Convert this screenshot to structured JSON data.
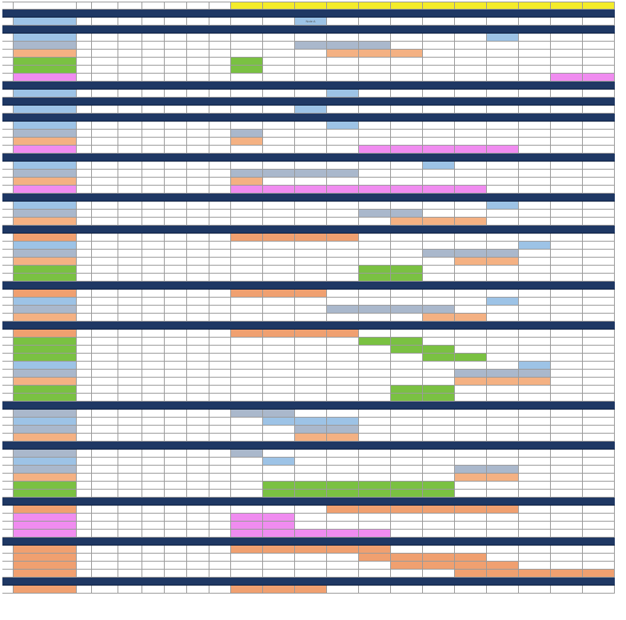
{
  "sheet": {
    "header": {
      "labels": [
        "",
        "",
        "",
        "",
        "",
        "",
        "",
        "",
        "",
        "",
        "",
        "",
        "",
        "",
        "",
        "",
        "",
        "",
        "",
        "",
        ""
      ],
      "yellow_cols": [
        9,
        10,
        11,
        12,
        13,
        14,
        15,
        16,
        17,
        18,
        19,
        20
      ]
    },
    "colors": {
      "blue": "#9dc3e6",
      "steel": "#aab8cc",
      "peach": "#f4b183",
      "green": "#7ac142",
      "pink": "#f08cf0",
      "orange": "#f0a070",
      "separator": "#1f3864",
      "header_yellow": "#f4ec2a"
    },
    "rows": [
      {
        "type": "sep",
        "label": ""
      },
      {
        "type": "row",
        "nameColor": "blue",
        "bars": [
          {
            "s": 11,
            "e": 11,
            "c": "blue",
            "label": "Note A"
          }
        ]
      },
      {
        "type": "sep",
        "label": ""
      },
      {
        "type": "row",
        "nameColor": "blue",
        "bars": [
          {
            "s": 17,
            "e": 17,
            "c": "blue",
            "label": ""
          }
        ]
      },
      {
        "type": "row",
        "nameColor": "steel",
        "bars": [
          {
            "s": 11,
            "e": 12,
            "c": "steel"
          },
          {
            "s": 13,
            "e": 13,
            "c": "steel",
            "label": ""
          }
        ]
      },
      {
        "type": "row",
        "nameColor": "peach",
        "bars": [
          {
            "s": 12,
            "e": 14,
            "c": "peach"
          },
          {
            "s": 14,
            "e": 14,
            "c": "peach",
            "label": ""
          }
        ]
      },
      {
        "type": "row",
        "nameColor": "green",
        "bars": [
          {
            "s": 9,
            "e": 9,
            "c": "green",
            "label": ""
          }
        ]
      },
      {
        "type": "row",
        "nameColor": "green",
        "bars": [
          {
            "s": 9,
            "e": 9,
            "c": "green",
            "label": ""
          }
        ]
      },
      {
        "type": "row",
        "nameColor": "pink",
        "bars": [
          {
            "s": 19,
            "e": 20,
            "c": "pink"
          }
        ]
      },
      {
        "type": "sep",
        "label": ""
      },
      {
        "type": "row",
        "nameColor": "blue",
        "bars": [
          {
            "s": 12,
            "e": 12,
            "c": "blue",
            "label": ""
          }
        ]
      },
      {
        "type": "sep",
        "label": ""
      },
      {
        "type": "row",
        "nameColor": "blue",
        "bars": [
          {
            "s": 11,
            "e": 11,
            "c": "blue",
            "label": ""
          }
        ]
      },
      {
        "type": "sep",
        "label": ""
      },
      {
        "type": "row",
        "nameColor": "blue",
        "bars": [
          {
            "s": 12,
            "e": 12,
            "c": "blue",
            "label": ""
          }
        ]
      },
      {
        "type": "row",
        "nameColor": "steel",
        "bars": [
          {
            "s": 9,
            "e": 9,
            "c": "steel",
            "label": ""
          }
        ]
      },
      {
        "type": "row",
        "nameColor": "peach",
        "bars": [
          {
            "s": 9,
            "e": 9,
            "c": "peach",
            "label": ""
          }
        ]
      },
      {
        "type": "row",
        "nameColor": "pink",
        "bars": [
          {
            "s": 13,
            "e": 17,
            "c": "pink",
            "label": ""
          }
        ]
      },
      {
        "type": "sep",
        "label": ""
      },
      {
        "type": "row",
        "nameColor": "blue",
        "bars": [
          {
            "s": 15,
            "e": 15,
            "c": "blue",
            "label": ""
          }
        ]
      },
      {
        "type": "row",
        "nameColor": "steel",
        "bars": [
          {
            "s": 9,
            "e": 12,
            "c": "steel",
            "label": ""
          }
        ]
      },
      {
        "type": "row",
        "nameColor": "peach",
        "bars": [
          {
            "s": 9,
            "e": 9,
            "c": "peach",
            "label": ""
          }
        ]
      },
      {
        "type": "row",
        "nameColor": "pink",
        "bars": [
          {
            "s": 9,
            "e": 16,
            "c": "pink",
            "label": ""
          }
        ]
      },
      {
        "type": "sep",
        "label": ""
      },
      {
        "type": "row",
        "nameColor": "blue",
        "bars": [
          {
            "s": 17,
            "e": 17,
            "c": "blue",
            "label": ""
          }
        ]
      },
      {
        "type": "row",
        "nameColor": "steel",
        "bars": [
          {
            "s": 13,
            "e": 14,
            "c": "steel",
            "label": ""
          }
        ]
      },
      {
        "type": "row",
        "nameColor": "peach",
        "bars": [
          {
            "s": 14,
            "e": 16,
            "c": "peach",
            "label": ""
          }
        ]
      },
      {
        "type": "sep",
        "label": ""
      },
      {
        "type": "row",
        "nameColor": "orange",
        "bars": [
          {
            "s": 9,
            "e": 12,
            "c": "orange",
            "label": ""
          }
        ]
      },
      {
        "type": "row",
        "nameColor": "blue",
        "bars": [
          {
            "s": 18,
            "e": 18,
            "c": "blue",
            "label": ""
          }
        ]
      },
      {
        "type": "row",
        "nameColor": "steel",
        "bars": [
          {
            "s": 15,
            "e": 17,
            "c": "steel",
            "label": ""
          }
        ]
      },
      {
        "type": "row",
        "nameColor": "peach",
        "bars": [
          {
            "s": 16,
            "e": 17,
            "c": "peach",
            "label": ""
          }
        ]
      },
      {
        "type": "row",
        "nameColor": "green",
        "bars": [
          {
            "s": 13,
            "e": 14,
            "c": "green",
            "label": ""
          }
        ]
      },
      {
        "type": "row",
        "nameColor": "green",
        "bars": [
          {
            "s": 13,
            "e": 14,
            "c": "green",
            "label": ""
          }
        ]
      },
      {
        "type": "sep",
        "label": ""
      },
      {
        "type": "row",
        "nameColor": "orange",
        "bars": [
          {
            "s": 9,
            "e": 11,
            "c": "orange",
            "label": ""
          }
        ]
      },
      {
        "type": "row",
        "nameColor": "blue",
        "bars": [
          {
            "s": 17,
            "e": 17,
            "c": "blue",
            "label": ""
          }
        ]
      },
      {
        "type": "row",
        "nameColor": "steel",
        "bars": [
          {
            "s": 12,
            "e": 15,
            "c": "steel",
            "label": ""
          }
        ]
      },
      {
        "type": "row",
        "nameColor": "peach",
        "bars": [
          {
            "s": 15,
            "e": 16,
            "c": "peach",
            "label": ""
          }
        ]
      },
      {
        "type": "sep",
        "label": ""
      },
      {
        "type": "row",
        "nameColor": "orange",
        "bars": [
          {
            "s": 9,
            "e": 12,
            "c": "orange",
            "label": ""
          }
        ]
      },
      {
        "type": "row",
        "nameColor": "green",
        "bars": [
          {
            "s": 13,
            "e": 14,
            "c": "green",
            "label": ""
          }
        ]
      },
      {
        "type": "row",
        "nameColor": "green",
        "bars": [
          {
            "s": 14,
            "e": 15,
            "c": "green",
            "label": ""
          }
        ]
      },
      {
        "type": "row",
        "nameColor": "green",
        "bars": [
          {
            "s": 15,
            "e": 16,
            "c": "green",
            "label": ""
          }
        ]
      },
      {
        "type": "row",
        "nameColor": "blue",
        "bars": [
          {
            "s": 18,
            "e": 18,
            "c": "blue",
            "label": ""
          }
        ]
      },
      {
        "type": "row",
        "nameColor": "steel",
        "bars": [
          {
            "s": 16,
            "e": 18,
            "c": "steel",
            "label": ""
          }
        ]
      },
      {
        "type": "row",
        "nameColor": "peach",
        "bars": [
          {
            "s": 16,
            "e": 18,
            "c": "peach",
            "label": ""
          }
        ]
      },
      {
        "type": "row",
        "nameColor": "green",
        "bars": [
          {
            "s": 14,
            "e": 15,
            "c": "green",
            "label": ""
          }
        ]
      },
      {
        "type": "row",
        "nameColor": "green",
        "bars": [
          {
            "s": 14,
            "e": 15,
            "c": "green",
            "label": ""
          }
        ]
      },
      {
        "type": "sep",
        "label": ""
      },
      {
        "type": "row",
        "nameColor": "steel",
        "bars": [
          {
            "s": 9,
            "e": 10,
            "c": "steel",
            "label": ""
          }
        ]
      },
      {
        "type": "row",
        "nameColor": "blue",
        "bars": [
          {
            "s": 10,
            "e": 12,
            "c": "blue",
            "label": ""
          }
        ]
      },
      {
        "type": "row",
        "nameColor": "steel",
        "bars": [
          {
            "s": 11,
            "e": 12,
            "c": "steel",
            "label": ""
          }
        ]
      },
      {
        "type": "row",
        "nameColor": "peach",
        "bars": [
          {
            "s": 11,
            "e": 12,
            "c": "peach",
            "label": ""
          }
        ]
      },
      {
        "type": "sep",
        "label": ""
      },
      {
        "type": "row",
        "nameColor": "steel",
        "bars": [
          {
            "s": 9,
            "e": 9,
            "c": "steel",
            "label": ""
          }
        ]
      },
      {
        "type": "row",
        "nameColor": "blue",
        "bars": [
          {
            "s": 10,
            "e": 10,
            "c": "blue",
            "label": ""
          }
        ]
      },
      {
        "type": "row",
        "nameColor": "steel",
        "bars": [
          {
            "s": 16,
            "e": 17,
            "c": "steel",
            "label": ""
          }
        ]
      },
      {
        "type": "row",
        "nameColor": "peach",
        "bars": [
          {
            "s": 16,
            "e": 17,
            "c": "peach",
            "label": ""
          }
        ]
      },
      {
        "type": "row",
        "nameColor": "green",
        "bars": [
          {
            "s": 10,
            "e": 15,
            "c": "green",
            "label": ""
          }
        ]
      },
      {
        "type": "row",
        "nameColor": "green",
        "bars": [
          {
            "s": 10,
            "e": 15,
            "c": "green",
            "label": ""
          }
        ]
      },
      {
        "type": "sep",
        "label": ""
      },
      {
        "type": "row",
        "nameColor": "orange",
        "bars": [
          {
            "s": 12,
            "e": 17,
            "c": "orange",
            "label": ""
          }
        ]
      },
      {
        "type": "row",
        "nameColor": "pink",
        "bars": [
          {
            "s": 9,
            "e": 10,
            "c": "pink",
            "label": ""
          }
        ]
      },
      {
        "type": "row",
        "nameColor": "pink",
        "bars": [
          {
            "s": 9,
            "e": 10,
            "c": "pink",
            "label": ""
          }
        ]
      },
      {
        "type": "row",
        "nameColor": "pink",
        "bars": [
          {
            "s": 9,
            "e": 13,
            "c": "pink",
            "label": ""
          }
        ]
      },
      {
        "type": "sep",
        "label": ""
      },
      {
        "type": "row",
        "nameColor": "orange",
        "bars": [
          {
            "s": 9,
            "e": 13,
            "c": "orange",
            "label": ""
          }
        ]
      },
      {
        "type": "row",
        "nameColor": "orange",
        "bars": [
          {
            "s": 13,
            "e": 16,
            "c": "orange",
            "label": ""
          }
        ]
      },
      {
        "type": "row",
        "nameColor": "orange",
        "bars": [
          {
            "s": 14,
            "e": 17,
            "c": "orange",
            "label": ""
          }
        ]
      },
      {
        "type": "row",
        "nameColor": "orange",
        "bars": [
          {
            "s": 16,
            "e": 20,
            "c": "orange",
            "label": ""
          }
        ]
      },
      {
        "type": "sep",
        "label": ""
      },
      {
        "type": "row",
        "nameColor": "orange",
        "bars": [
          {
            "s": 9,
            "e": 11,
            "c": "orange",
            "label": ""
          }
        ]
      }
    ]
  }
}
